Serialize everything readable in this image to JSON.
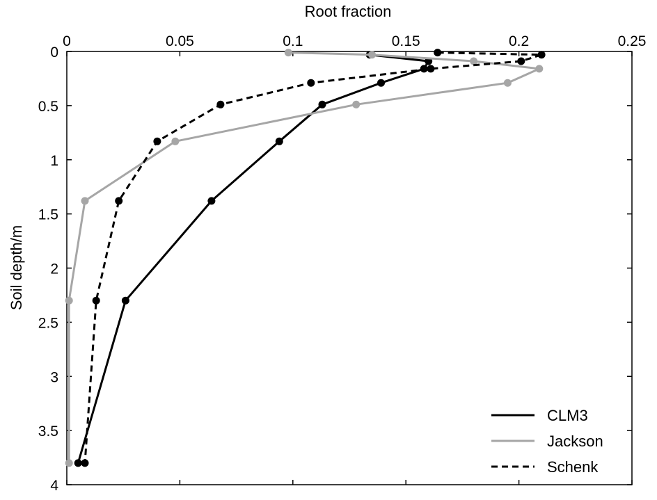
{
  "chart_data": {
    "type": "line",
    "title": "",
    "xlabel": "Root fraction",
    "ylabel": "Soil depth/m",
    "xlim": [
      0,
      0.25
    ],
    "ylim": [
      0,
      4
    ],
    "y_reversed": true,
    "x_axis_position": "top",
    "x_ticks": [
      0,
      0.05,
      0.1,
      0.15,
      0.2,
      0.25
    ],
    "x_tick_labels": [
      "0",
      "0.05",
      "0.1",
      "0.15",
      "0.2",
      "0.25"
    ],
    "y_ticks": [
      0,
      0.5,
      1,
      1.5,
      2,
      2.5,
      3,
      3.5,
      4
    ],
    "y_tick_labels": [
      "0",
      "0.5",
      "1",
      "1.5",
      "2",
      "2.5",
      "3",
      "3.5",
      "4"
    ],
    "grid": false,
    "legend_position": "bottom-right",
    "series": [
      {
        "name": "CLM3",
        "color": "#000000",
        "dash": "solid",
        "points": [
          {
            "x": 0.134,
            "y": 0.03
          },
          {
            "x": 0.16,
            "y": 0.09
          },
          {
            "x": 0.158,
            "y": 0.16
          },
          {
            "x": 0.139,
            "y": 0.29
          },
          {
            "x": 0.113,
            "y": 0.49
          },
          {
            "x": 0.094,
            "y": 0.83
          },
          {
            "x": 0.064,
            "y": 1.38
          },
          {
            "x": 0.026,
            "y": 2.3
          },
          {
            "x": 0.005,
            "y": 3.8
          }
        ]
      },
      {
        "name": "Jackson",
        "color": "#a6a6a6",
        "dash": "solid",
        "points": [
          {
            "x": 0.098,
            "y": 0.01
          },
          {
            "x": 0.135,
            "y": 0.03
          },
          {
            "x": 0.18,
            "y": 0.09
          },
          {
            "x": 0.209,
            "y": 0.16
          },
          {
            "x": 0.195,
            "y": 0.29
          },
          {
            "x": 0.128,
            "y": 0.49
          },
          {
            "x": 0.048,
            "y": 0.83
          },
          {
            "x": 0.008,
            "y": 1.38
          },
          {
            "x": 0.001,
            "y": 2.3
          },
          {
            "x": 0.001,
            "y": 3.8
          }
        ]
      },
      {
        "name": "Schenk",
        "color": "#000000",
        "dash": "dashed",
        "points": [
          {
            "x": 0.164,
            "y": 0.01
          },
          {
            "x": 0.21,
            "y": 0.03
          },
          {
            "x": 0.201,
            "y": 0.09
          },
          {
            "x": 0.161,
            "y": 0.16
          },
          {
            "x": 0.108,
            "y": 0.29
          },
          {
            "x": 0.068,
            "y": 0.49
          },
          {
            "x": 0.04,
            "y": 0.83
          },
          {
            "x": 0.023,
            "y": 1.38
          },
          {
            "x": 0.013,
            "y": 2.3
          },
          {
            "x": 0.008,
            "y": 3.8
          }
        ]
      }
    ]
  }
}
